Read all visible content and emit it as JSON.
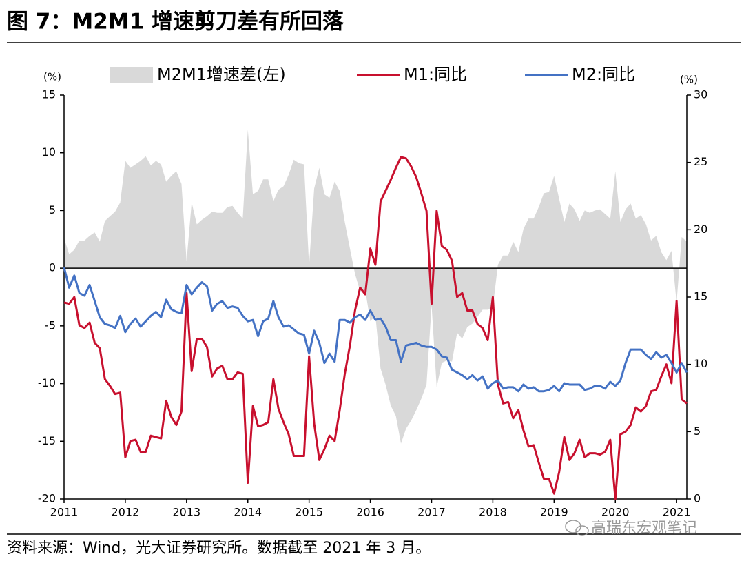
{
  "title": "图 7：M2M1 增速剪刀差有所回落",
  "source": "资料来源：Wind，光大证券研究所。数据截至 2021 年 3 月。",
  "watermark": "高瑞东宏观笔记",
  "chart_data": {
    "type": "line",
    "y_label": "(%)",
    "y2_label": "(%)",
    "x": [
      2011,
      2011.083,
      2011.167,
      2011.25,
      2011.333,
      2011.417,
      2011.5,
      2011.583,
      2011.667,
      2011.75,
      2011.833,
      2011.917,
      2012,
      2012.083,
      2012.167,
      2012.25,
      2012.333,
      2012.417,
      2012.5,
      2012.583,
      2012.667,
      2012.75,
      2012.833,
      2012.917,
      2013,
      2013.083,
      2013.167,
      2013.25,
      2013.333,
      2013.417,
      2013.5,
      2013.583,
      2013.667,
      2013.75,
      2013.833,
      2013.917,
      2014,
      2014.083,
      2014.167,
      2014.25,
      2014.333,
      2014.417,
      2014.5,
      2014.583,
      2014.667,
      2014.75,
      2014.833,
      2014.917,
      2015,
      2015.083,
      2015.167,
      2015.25,
      2015.333,
      2015.417,
      2015.5,
      2015.583,
      2015.667,
      2015.75,
      2015.833,
      2015.917,
      2016,
      2016.083,
      2016.167,
      2016.25,
      2016.333,
      2016.417,
      2016.5,
      2016.583,
      2016.667,
      2016.75,
      2016.833,
      2016.917,
      2017,
      2017.083,
      2017.167,
      2017.25,
      2017.333,
      2017.417,
      2017.5,
      2017.583,
      2017.667,
      2017.75,
      2017.833,
      2017.917,
      2018,
      2018.083,
      2018.167,
      2018.25,
      2018.333,
      2018.417,
      2018.5,
      2018.583,
      2018.667,
      2018.75,
      2018.833,
      2018.917,
      2019,
      2019.083,
      2019.167,
      2019.25,
      2019.333,
      2019.417,
      2019.5,
      2019.583,
      2019.667,
      2019.75,
      2019.833,
      2019.917,
      2020,
      2020.083,
      2020.167,
      2020.25,
      2020.333,
      2020.417,
      2020.5,
      2020.583,
      2020.667,
      2020.75,
      2020.833,
      2020.917,
      2021,
      2021.083,
      2021.167
    ],
    "series": [
      {
        "name": "M2M1增速差(左)",
        "color": "#d9d9d9",
        "style": "area",
        "axis": "y",
        "values": [
          2.6,
          1.2,
          1.6,
          2.4,
          2.4,
          2.8,
          3.1,
          2.3,
          4.1,
          4.5,
          4.9,
          5.7,
          9.3,
          8.7,
          9.0,
          9.3,
          9.7,
          8.9,
          9.3,
          9.0,
          7.5,
          8.0,
          8.4,
          7.3,
          0.6,
          5.7,
          3.8,
          4.2,
          4.5,
          4.9,
          4.8,
          4.8,
          5.3,
          5.4,
          4.8,
          4.3,
          12.0,
          6.4,
          6.7,
          7.7,
          7.7,
          5.8,
          6.8,
          7.1,
          8.1,
          9.4,
          9.1,
          9.0,
          0.2,
          6.9,
          8.7,
          6.4,
          6.1,
          7.5,
          6.7,
          4.0,
          1.7,
          -0.5,
          -2.0,
          -1.9,
          -4.6,
          -4.1,
          -8.7,
          -10.1,
          -11.9,
          -12.8,
          -15.2,
          -13.9,
          -13.2,
          -12.3,
          -11.3,
          -10.1,
          -3.2,
          -10.3,
          -8.2,
          -8.0,
          -8.1,
          -5.6,
          -6.1,
          -5.1,
          -4.8,
          -4.2,
          -3.6,
          -3.6,
          -3.4,
          0.3,
          1.1,
          1.1,
          2.3,
          1.4,
          3.4,
          4.3,
          4.3,
          5.3,
          6.5,
          6.6,
          8.0,
          6.0,
          4.0,
          5.6,
          5.1,
          4.1,
          5.0,
          4.8,
          5.0,
          5.1,
          4.7,
          4.3,
          8.4,
          4.0,
          5.1,
          5.6,
          4.3,
          4.6,
          3.8,
          2.4,
          2.8,
          1.4,
          0.7,
          1.5,
          -3.0,
          2.7,
          2.3
        ]
      },
      {
        "name": "M1:同比",
        "color": "#c8102e",
        "style": "line",
        "axis": "y2",
        "values": [
          14.6,
          14.5,
          15.0,
          12.9,
          12.7,
          13.1,
          11.6,
          11.2,
          8.9,
          8.4,
          7.8,
          7.9,
          3.1,
          4.3,
          4.4,
          3.5,
          3.5,
          4.7,
          4.6,
          4.5,
          7.3,
          6.1,
          5.5,
          6.5,
          15.3,
          9.5,
          11.9,
          11.9,
          11.3,
          9.1,
          9.7,
          9.9,
          8.9,
          8.9,
          9.4,
          9.3,
          1.2,
          6.9,
          5.4,
          5.5,
          5.7,
          8.9,
          6.7,
          5.7,
          4.8,
          3.2,
          3.2,
          3.2,
          10.6,
          5.6,
          2.9,
          3.7,
          4.7,
          4.3,
          6.6,
          9.3,
          11.4,
          14.0,
          15.7,
          15.2,
          18.6,
          17.4,
          22.1,
          22.9,
          23.7,
          24.6,
          25.4,
          25.3,
          24.7,
          23.9,
          22.7,
          21.4,
          14.5,
          21.4,
          18.8,
          18.5,
          17.7,
          15.0,
          15.3,
          14.0,
          14.0,
          13.0,
          12.7,
          11.8,
          15.0,
          8.5,
          7.1,
          7.2,
          6.0,
          6.6,
          5.1,
          3.9,
          4.0,
          2.7,
          1.5,
          1.5,
          0.4,
          2.0,
          4.6,
          2.9,
          3.4,
          4.4,
          3.1,
          3.4,
          3.4,
          3.3,
          3.5,
          4.4,
          0.0,
          4.8,
          5.0,
          5.5,
          6.8,
          6.5,
          6.9,
          8.0,
          8.1,
          9.1,
          10.0,
          8.6,
          14.7,
          7.4,
          7.1
        ]
      },
      {
        "name": "M2:同比",
        "color": "#4472c4",
        "style": "line",
        "axis": "y2",
        "values": [
          17.2,
          15.7,
          16.6,
          15.3,
          15.1,
          15.9,
          14.7,
          13.5,
          13.0,
          12.9,
          12.7,
          13.6,
          12.4,
          13.0,
          13.4,
          12.8,
          13.2,
          13.6,
          13.9,
          13.5,
          14.8,
          14.1,
          13.9,
          13.8,
          15.9,
          15.2,
          15.7,
          16.1,
          15.8,
          14.0,
          14.5,
          14.7,
          14.2,
          14.3,
          14.2,
          13.6,
          13.2,
          13.3,
          12.1,
          13.2,
          13.4,
          14.7,
          13.5,
          12.8,
          12.9,
          12.6,
          12.3,
          12.2,
          10.8,
          12.5,
          11.6,
          10.1,
          10.8,
          10.2,
          13.3,
          13.3,
          13.1,
          13.5,
          13.7,
          13.3,
          14.0,
          13.3,
          13.4,
          12.8,
          11.8,
          11.8,
          10.2,
          11.4,
          11.5,
          11.6,
          11.4,
          11.3,
          11.3,
          11.1,
          10.6,
          10.5,
          9.6,
          9.4,
          9.2,
          8.9,
          9.2,
          8.8,
          9.1,
          8.2,
          8.6,
          8.8,
          8.2,
          8.3,
          8.3,
          8.0,
          8.5,
          8.2,
          8.3,
          8.0,
          8.0,
          8.1,
          8.4,
          8.0,
          8.6,
          8.5,
          8.5,
          8.5,
          8.1,
          8.2,
          8.4,
          8.4,
          8.2,
          8.7,
          8.4,
          8.8,
          10.1,
          11.1,
          11.1,
          11.1,
          10.7,
          10.4,
          10.9,
          10.5,
          10.7,
          10.1,
          9.4,
          10.1,
          9.4
        ]
      }
    ],
    "xlim": [
      2011,
      2021.167
    ],
    "xticks": [
      2011,
      2012,
      2013,
      2014,
      2015,
      2016,
      2017,
      2018,
      2019,
      2020,
      2021
    ],
    "ylim": [
      -20,
      15
    ],
    "yticks": [
      15,
      10,
      5,
      0,
      -5,
      -10,
      -15,
      -20
    ],
    "y2lim": [
      0,
      30
    ],
    "y2ticks": [
      30,
      25,
      20,
      15,
      10,
      5,
      0
    ],
    "legend": "top"
  }
}
